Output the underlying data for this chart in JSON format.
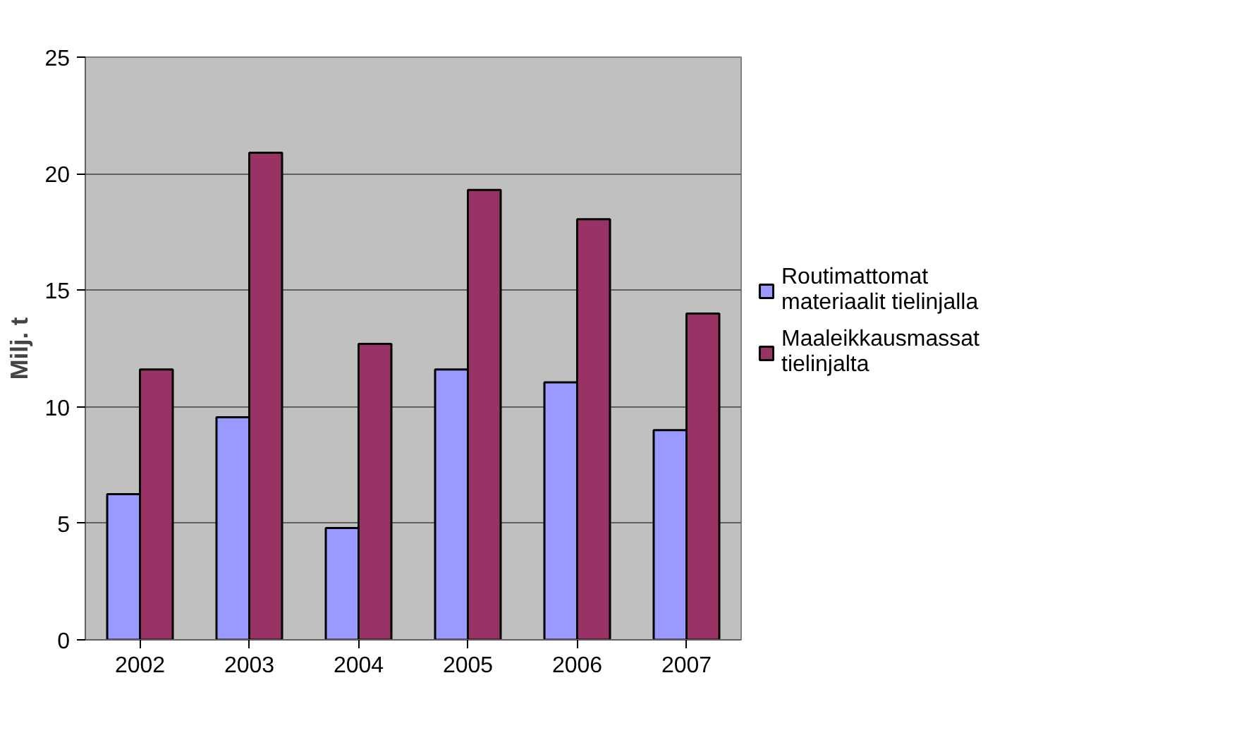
{
  "chart_data": {
    "type": "bar",
    "ylabel": "Milj. t",
    "categories": [
      "2002",
      "2003",
      "2004",
      "2005",
      "2006",
      "2007"
    ],
    "series": [
      {
        "name": "Routimattomat materiaalit tielinjalla",
        "color": "#9999ff",
        "values": [
          6.25,
          9.55,
          4.8,
          11.6,
          11.05,
          9.0
        ]
      },
      {
        "name": "Maaleikkausmassat tielinjalta",
        "color": "#993366",
        "values": [
          11.6,
          20.9,
          12.7,
          19.3,
          18.05,
          14.0
        ]
      }
    ],
    "ylim": [
      0,
      25
    ],
    "yticks": [
      0,
      5,
      10,
      15,
      20,
      25
    ],
    "grid": "y",
    "legend": "right"
  }
}
